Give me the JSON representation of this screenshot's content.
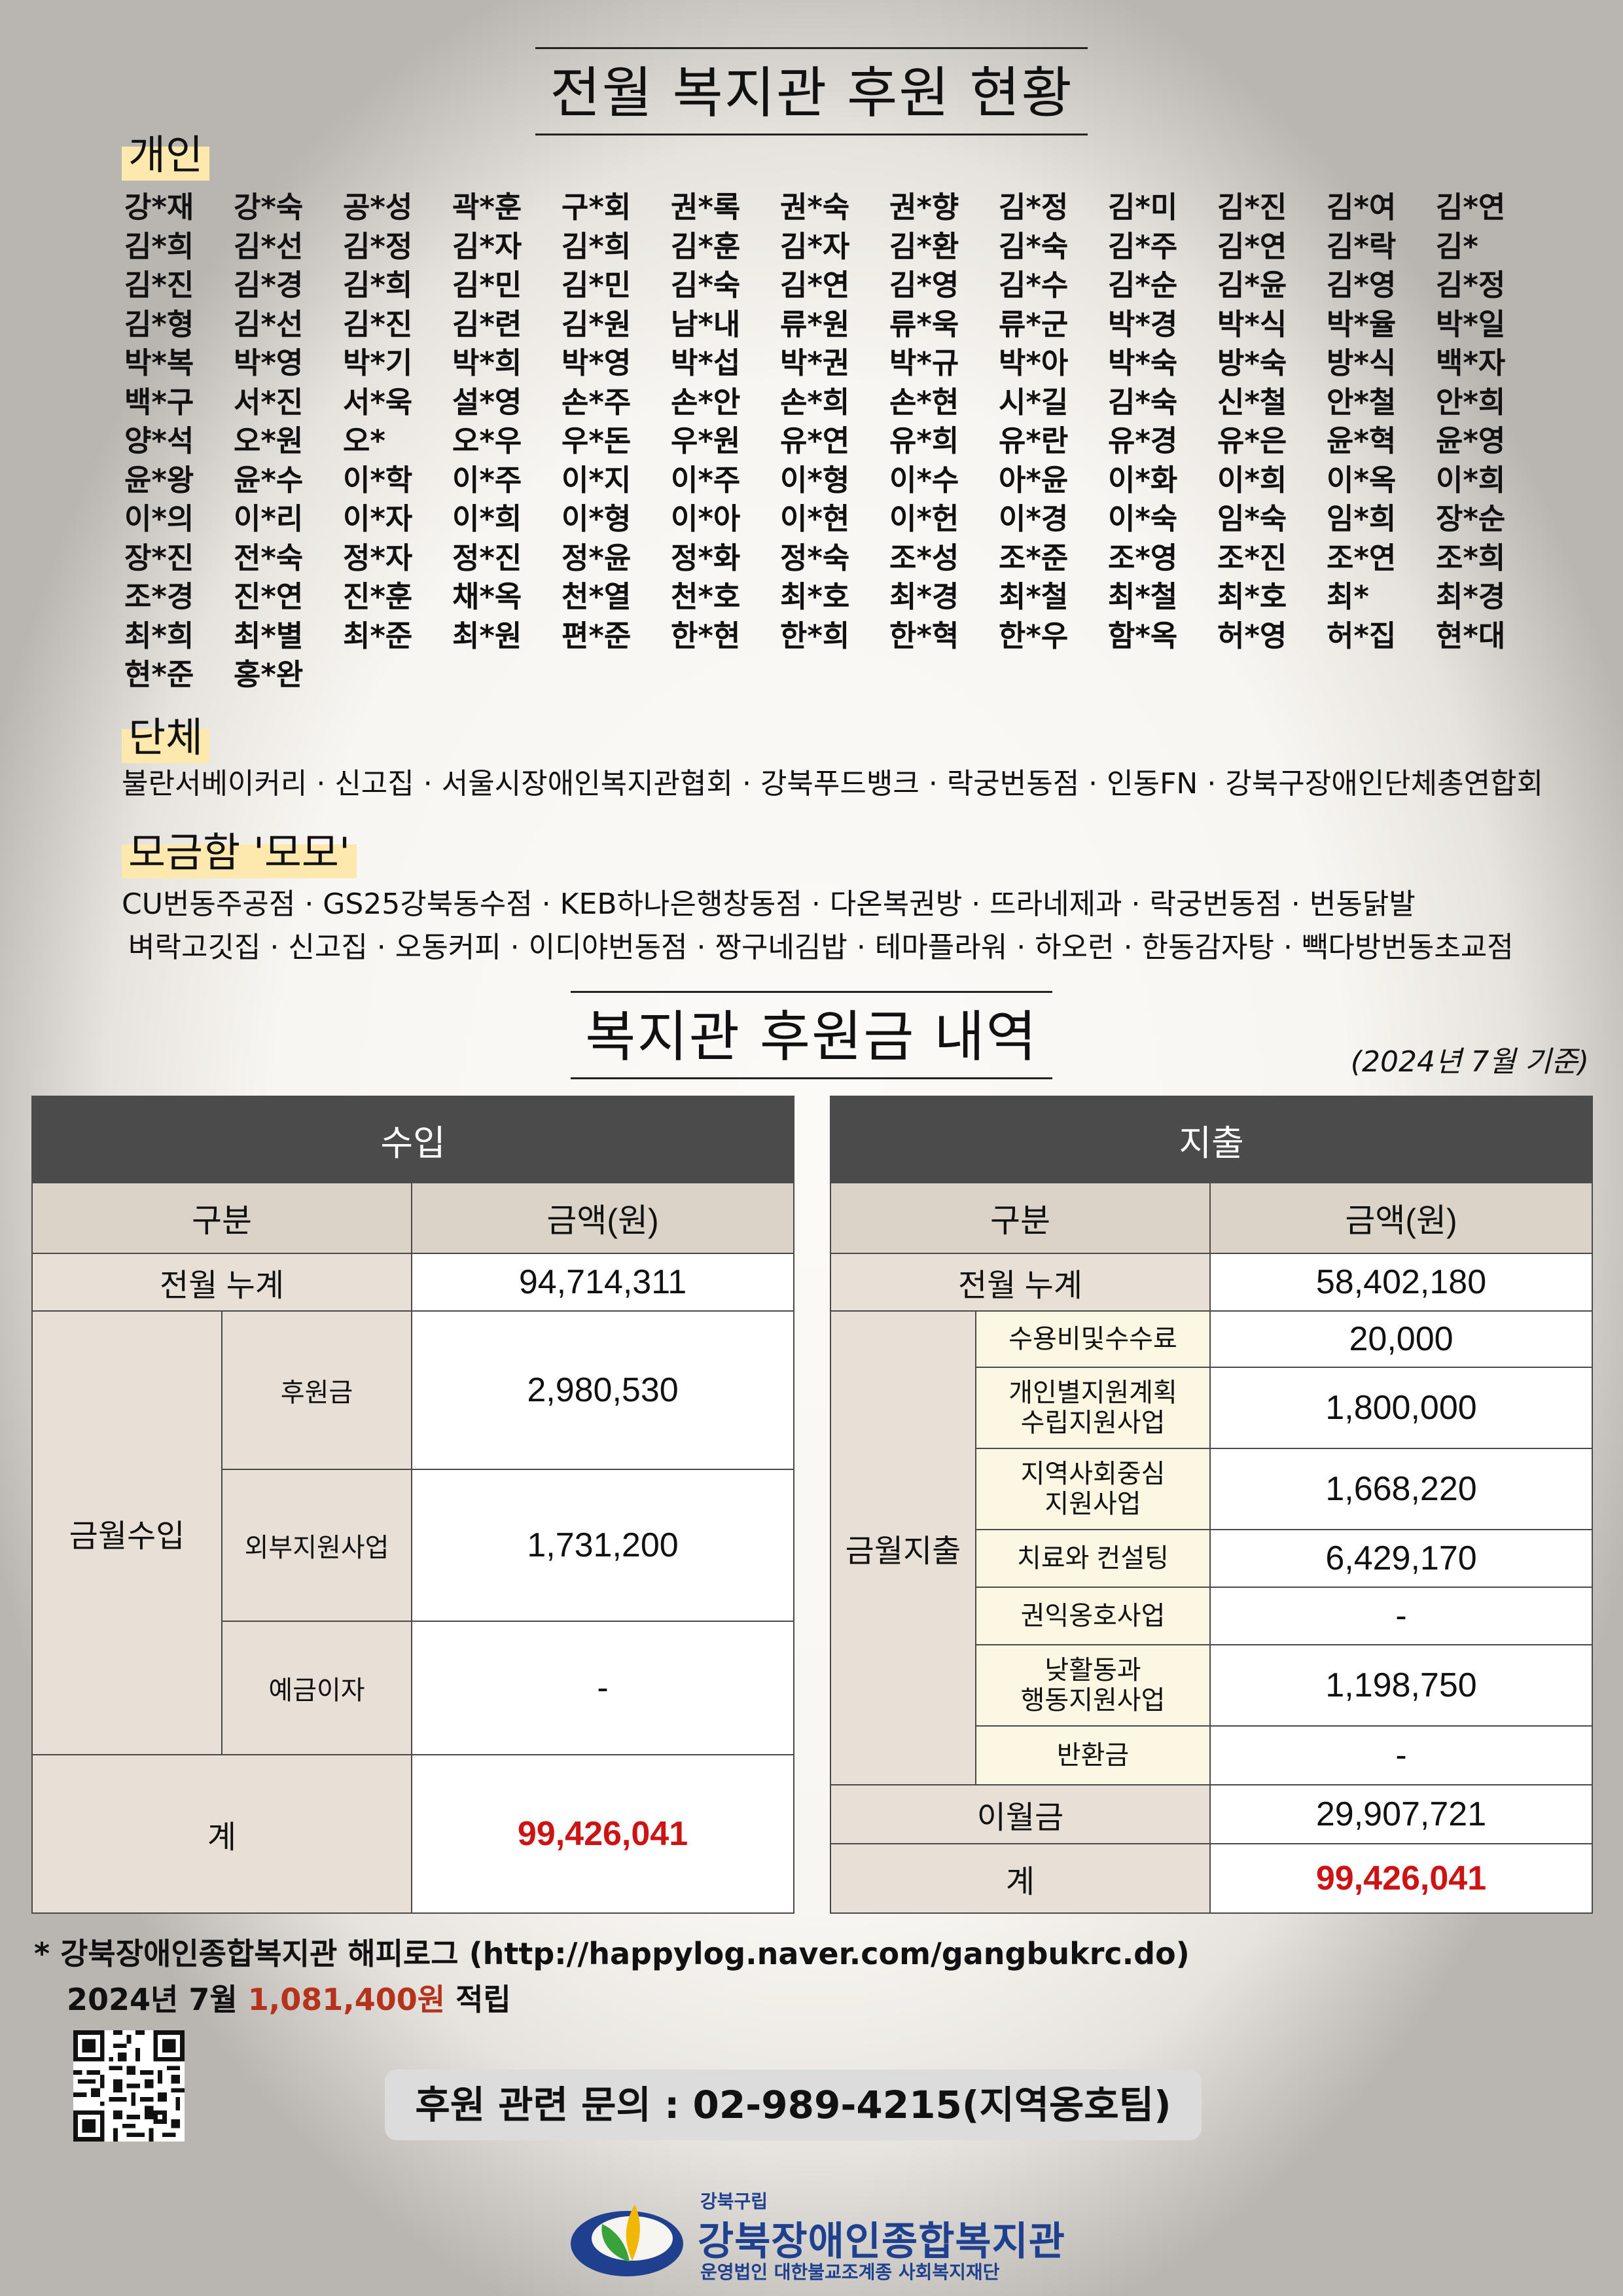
{
  "header": {
    "title": "전월 복지관 후원 현황"
  },
  "individual": {
    "label": "개인",
    "names": [
      "강*재",
      "강*숙",
      "공*성",
      "곽*훈",
      "구*회",
      "권*록",
      "권*숙",
      "권*향",
      "김*정",
      "김*미",
      "김*진",
      "김*여",
      "김*연",
      "김*희",
      "김*선",
      "김*정",
      "김*자",
      "김*희",
      "김*훈",
      "김*자",
      "김*환",
      "김*숙",
      "김*주",
      "김*연",
      "김*락",
      "김*",
      "김*진",
      "김*경",
      "김*희",
      "김*민",
      "김*민",
      "김*숙",
      "김*연",
      "김*영",
      "김*수",
      "김*순",
      "김*윤",
      "김*영",
      "김*정",
      "김*형",
      "김*선",
      "김*진",
      "김*련",
      "김*원",
      "남*내",
      "류*원",
      "류*욱",
      "류*군",
      "박*경",
      "박*식",
      "박*율",
      "박*일",
      "박*복",
      "박*영",
      "박*기",
      "박*희",
      "박*영",
      "박*섭",
      "박*권",
      "박*규",
      "박*아",
      "박*숙",
      "방*숙",
      "방*식",
      "백*자",
      "백*구",
      "서*진",
      "서*욱",
      "설*영",
      "손*주",
      "손*안",
      "손*희",
      "손*현",
      "시*길",
      "김*숙",
      "신*철",
      "안*철",
      "안*희",
      "양*석",
      "오*원",
      "오*",
      "오*우",
      "우*돈",
      "우*원",
      "유*연",
      "유*희",
      "유*란",
      "유*경",
      "유*은",
      "윤*혁",
      "윤*영",
      "윤*왕",
      "윤*수",
      "이*학",
      "이*주",
      "이*지",
      "이*주",
      "이*형",
      "이*수",
      "아*윤",
      "이*화",
      "이*희",
      "이*옥",
      "이*희",
      "이*의",
      "이*리",
      "이*자",
      "이*희",
      "이*형",
      "이*아",
      "이*현",
      "이*헌",
      "이*경",
      "이*숙",
      "임*숙",
      "임*희",
      "장*순",
      "장*진",
      "전*숙",
      "정*자",
      "정*진",
      "정*윤",
      "정*화",
      "정*숙",
      "조*성",
      "조*준",
      "조*영",
      "조*진",
      "조*연",
      "조*희",
      "조*경",
      "진*연",
      "진*훈",
      "채*옥",
      "천*열",
      "천*호",
      "최*호",
      "최*경",
      "최*철",
      "최*철",
      "최*호",
      "최*",
      "최*경",
      "최*희",
      "최*별",
      "최*준",
      "최*원",
      "편*준",
      "한*현",
      "한*희",
      "한*혁",
      "한*우",
      "함*옥",
      "허*영",
      "허*집",
      "현*대",
      "현*준",
      "홍*완"
    ]
  },
  "groups": {
    "label": "단체",
    "text": "불란서베이커리 · 신고집 · 서울시장애인복지관협회 · 강북푸드뱅크 · 락궁번동점 · 인동FN · 강북구장애인단체총연합회"
  },
  "donation_box": {
    "label": "모금함 '모모'",
    "line1": "CU번동주공점 · GS25강북동수점 · KEB하나은행창동점 · 다온복권방 · 뜨라네제과 · 락궁번동점 · 번동닭발",
    "line2": "벼락고깃집 · 신고집 · 오동커피 · 이디야번동점 · 짱구네김밥 · 테마플라워 · 하오런 · 한동감자탕 · 빽다방번동초교점"
  },
  "finance": {
    "title": "복지관 후원금 내역",
    "date_note": "(2024년 7월 기준)",
    "income": {
      "header": "수입",
      "col_category": "구분",
      "col_amount": "금액(원)",
      "prev_label": "전월 누계",
      "prev_value": "94,714,311",
      "month_label": "금월수입",
      "items": [
        {
          "label": "후원금",
          "value": "2,980,530"
        },
        {
          "label": "외부지원사업",
          "value": "1,731,200"
        },
        {
          "label": "예금이자",
          "value": "-"
        }
      ],
      "total_label": "계",
      "total_value": "99,426,041"
    },
    "expense": {
      "header": "지출",
      "col_category": "구분",
      "col_amount": "금액(원)",
      "prev_label": "전월 누계",
      "prev_value": "58,402,180",
      "month_label": "금월지출",
      "items": [
        {
          "label": "수용비및수수료",
          "value": "20,000"
        },
        {
          "label": "개인별지원계획\n수립지원사업",
          "value": "1,800,000"
        },
        {
          "label": "지역사회중심\n지원사업",
          "value": "1,668,220"
        },
        {
          "label": "치료와 컨설팅",
          "value": "6,429,170"
        },
        {
          "label": "권익옹호사업",
          "value": "-"
        },
        {
          "label": "낮활동과\n행동지원사업",
          "value": "1,198,750"
        },
        {
          "label": "반환금",
          "value": "-"
        }
      ],
      "carry_label": "이월금",
      "carry_value": "29,907,721",
      "total_label": "계",
      "total_value": "99,426,041"
    }
  },
  "footnote": {
    "line1": "* 강북장애인종합복지관 해피로그 (http://happylog.naver.com/gangbukrc.do)",
    "line2_prefix": "2024년 7월",
    "line2_amount": "1,081,400원",
    "line2_suffix": "적립"
  },
  "contact": "후원 관련 문의 : 02-989-4215(지역옹호팀)",
  "logo": {
    "small": "강북구립",
    "name": "강북장애인종합복지관",
    "sub": "운영법인 대한불교조계종 사회복지재단",
    "colors": {
      "blue": "#1f3f8f",
      "yellow": "#f2b705",
      "green": "#3aa23a"
    }
  }
}
